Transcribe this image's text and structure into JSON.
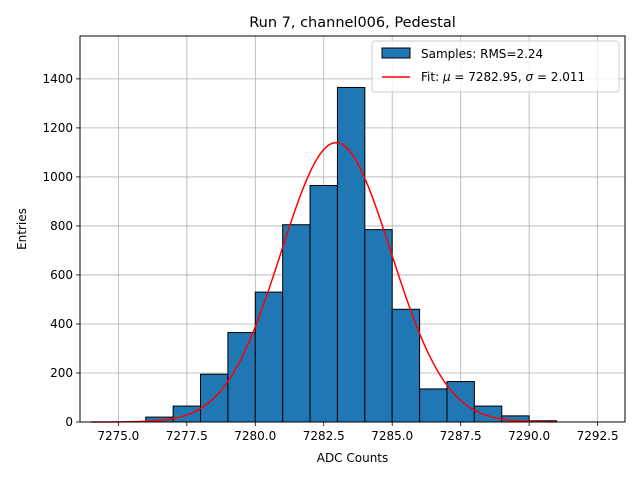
{
  "chart_data": {
    "type": "bar",
    "title": "Run 7, channel006, Pedestal",
    "xlabel": "ADC Counts",
    "ylabel": "Entries",
    "xlim": [
      7273.6,
      7293.5
    ],
    "ylim": [
      0,
      1575
    ],
    "xticks": [
      7275.0,
      7277.5,
      7280.0,
      7282.5,
      7285.0,
      7287.5,
      7290.0,
      7292.5
    ],
    "xtick_labels": [
      "7275.0",
      "7277.5",
      "7280.0",
      "7282.5",
      "7285.0",
      "7287.5",
      "7290.0",
      "7292.5"
    ],
    "yticks": [
      0,
      200,
      400,
      600,
      800,
      1000,
      1200,
      1400
    ],
    "ytick_labels": [
      "0",
      "200",
      "400",
      "600",
      "800",
      "1000",
      "1200",
      "1400"
    ],
    "grid": true,
    "legend_position": "top-right",
    "histogram": {
      "name": "Samples: RMS=2.24",
      "color": "#1f77b4",
      "bin_edges": [
        7276,
        7277,
        7278,
        7279,
        7280,
        7281,
        7282,
        7283,
        7284,
        7285,
        7286,
        7287,
        7288,
        7289,
        7290,
        7291
      ],
      "counts": [
        20,
        65,
        195,
        365,
        530,
        805,
        965,
        1365,
        785,
        460,
        135,
        165,
        65,
        25,
        5
      ]
    },
    "fit": {
      "name": "Fit: μ = 7282.95, σ = 2.011",
      "label_parts": {
        "prefix": "Fit: ",
        "mu_symbol": "μ",
        "mu_text": " = 7282.95, ",
        "sigma_symbol": "σ",
        "sigma_text": " = 2.011"
      },
      "color": "#ff0000",
      "mu": 7282.95,
      "sigma": 2.011,
      "amplitude": 1140,
      "x_range": [
        7274,
        7291
      ]
    }
  }
}
